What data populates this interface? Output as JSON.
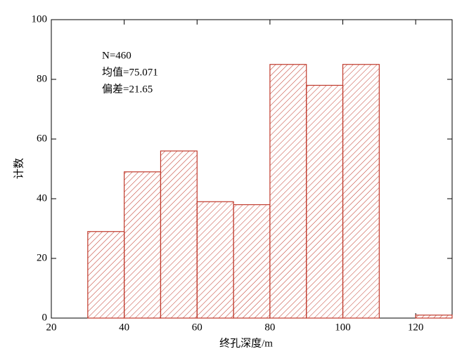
{
  "chart_data": {
    "type": "histogram",
    "xlabel": "终孔深度/m",
    "ylabel": "计数",
    "annotations": [
      "N=460",
      "均值=75.071",
      "偏差=21.65"
    ],
    "bins": [
      30,
      40,
      50,
      60,
      70,
      80,
      90,
      100,
      110,
      120,
      130
    ],
    "values": [
      29,
      49,
      56,
      39,
      38,
      85,
      78,
      85,
      0,
      1
    ],
    "color": "#c0392b",
    "xlim": [
      20,
      130
    ],
    "xticks": [
      20,
      40,
      60,
      80,
      100,
      120
    ],
    "ylim": [
      0,
      100
    ],
    "yticks": [
      0,
      20,
      40,
      60,
      80,
      100
    ]
  }
}
